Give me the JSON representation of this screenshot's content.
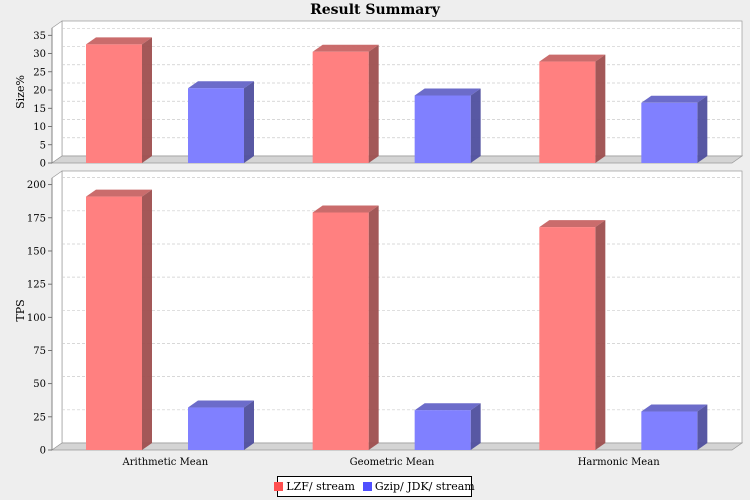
{
  "chart_data": {
    "type": "bar",
    "title": "Result Summary",
    "categories": [
      "Arithmetic Mean",
      "Geometric Mean",
      "Harmonic Mean"
    ],
    "series": [
      {
        "name": "LZF/ stream",
        "color": "#ff8080"
      },
      {
        "name": "Gzip/ JDK/ stream",
        "color": "#8080ff"
      }
    ],
    "panels": [
      {
        "ylabel": "Size%",
        "ylim": [
          0,
          37
        ],
        "yticks": [
          0,
          5,
          10,
          15,
          20,
          25,
          30,
          35
        ],
        "values": [
          [
            32.5,
            30.5,
            27.8
          ],
          [
            20.5,
            18.5,
            16.5
          ]
        ]
      },
      {
        "ylabel": "TPS",
        "ylim": [
          0,
          205
        ],
        "yticks": [
          0,
          25,
          50,
          75,
          100,
          125,
          150,
          175,
          200
        ],
        "values": [
          [
            191,
            179,
            168
          ],
          [
            32,
            30,
            29
          ]
        ]
      }
    ],
    "grid": true,
    "legend_position": "bottom"
  }
}
